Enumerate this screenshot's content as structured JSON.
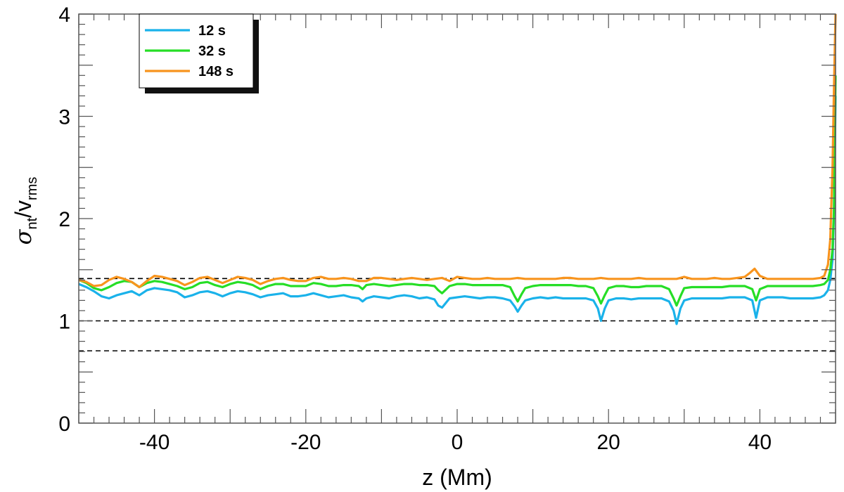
{
  "chart_data": {
    "type": "line",
    "title": "",
    "xlabel": "z (Mm)",
    "ylabel": {
      "symbol": "σ",
      "sub1": "nt",
      "slash": "/",
      "v": "v",
      "sub2": "rms"
    },
    "xlim": [
      -50,
      50
    ],
    "ylim": [
      0,
      4
    ],
    "x_ticks": [
      -40,
      -20,
      0,
      20,
      40
    ],
    "y_ticks": [
      0,
      1,
      2,
      3,
      4
    ],
    "x_minor_step": 2,
    "y_minor_step": 0.1,
    "grid": false,
    "legend_position": "top-left",
    "reference_lines": [
      1.414,
      1.0,
      0.707
    ],
    "series": [
      {
        "name": "12 s",
        "color": "#1ab2ea",
        "x": [
          -50,
          -49,
          -48,
          -47,
          -46,
          -45,
          -44,
          -43,
          -42,
          -41,
          -40,
          -39,
          -38,
          -37,
          -36,
          -35,
          -34,
          -33,
          -32,
          -31,
          -30,
          -29,
          -28,
          -27,
          -26,
          -25,
          -24,
          -23,
          -22,
          -21,
          -20,
          -19,
          -18,
          -17,
          -16,
          -15,
          -14,
          -13,
          -12.5,
          -12,
          -11,
          -10,
          -9,
          -8,
          -7,
          -6,
          -5,
          -4,
          -3,
          -2.5,
          -2,
          -1,
          0,
          1,
          2,
          3,
          4,
          5,
          6,
          7,
          7.6,
          8,
          8.5,
          9,
          10,
          11,
          12,
          13,
          14,
          15,
          16,
          17,
          18,
          18.6,
          19,
          19.5,
          20,
          21,
          22,
          23,
          24,
          25,
          26,
          27,
          28,
          28.6,
          29,
          29.5,
          30,
          31,
          32,
          33,
          34,
          35,
          36,
          37,
          38,
          39,
          39.5,
          40,
          41,
          42,
          43,
          44,
          45,
          46,
          47,
          48,
          48.5,
          49,
          49.3,
          49.6,
          49.8,
          50
        ],
        "y": [
          1.36,
          1.33,
          1.29,
          1.24,
          1.22,
          1.25,
          1.27,
          1.29,
          1.25,
          1.3,
          1.32,
          1.31,
          1.3,
          1.28,
          1.23,
          1.25,
          1.28,
          1.29,
          1.27,
          1.24,
          1.27,
          1.29,
          1.28,
          1.26,
          1.23,
          1.25,
          1.26,
          1.27,
          1.24,
          1.24,
          1.25,
          1.27,
          1.25,
          1.23,
          1.24,
          1.25,
          1.23,
          1.22,
          1.19,
          1.22,
          1.24,
          1.23,
          1.22,
          1.24,
          1.25,
          1.24,
          1.22,
          1.23,
          1.21,
          1.15,
          1.13,
          1.22,
          1.23,
          1.24,
          1.23,
          1.22,
          1.23,
          1.23,
          1.22,
          1.2,
          1.14,
          1.09,
          1.15,
          1.2,
          1.22,
          1.23,
          1.22,
          1.23,
          1.22,
          1.22,
          1.22,
          1.22,
          1.2,
          1.12,
          1.0,
          1.12,
          1.2,
          1.22,
          1.22,
          1.21,
          1.22,
          1.22,
          1.22,
          1.22,
          1.19,
          1.1,
          0.97,
          1.12,
          1.2,
          1.22,
          1.22,
          1.22,
          1.22,
          1.22,
          1.23,
          1.23,
          1.23,
          1.2,
          1.03,
          1.2,
          1.23,
          1.23,
          1.23,
          1.22,
          1.22,
          1.22,
          1.22,
          1.23,
          1.25,
          1.3,
          1.4,
          1.6,
          2.05,
          3.2
        ]
      },
      {
        "name": "32 s",
        "color": "#26de26",
        "x": [
          -50,
          -49,
          -48,
          -47,
          -46,
          -45,
          -44,
          -43,
          -42,
          -41,
          -40,
          -39,
          -38,
          -37,
          -36,
          -35,
          -34,
          -33,
          -32,
          -31,
          -30,
          -29,
          -28,
          -27,
          -26,
          -25,
          -24,
          -23,
          -22,
          -21,
          -20,
          -19,
          -18,
          -17,
          -16,
          -15,
          -14,
          -13,
          -12.5,
          -12,
          -11,
          -10,
          -9,
          -8,
          -7,
          -6,
          -5,
          -4,
          -3,
          -2.5,
          -2,
          -1,
          0,
          1,
          2,
          3,
          4,
          5,
          6,
          7,
          7.6,
          8,
          8.5,
          9,
          10,
          11,
          12,
          13,
          14,
          15,
          16,
          17,
          18,
          18.6,
          19,
          19.5,
          20,
          21,
          22,
          23,
          24,
          25,
          26,
          27,
          28,
          28.6,
          29,
          29.5,
          30,
          31,
          32,
          33,
          34,
          35,
          36,
          37,
          38,
          39,
          39.5,
          40,
          41,
          42,
          43,
          44,
          45,
          46,
          47,
          48,
          48.5,
          49,
          49.3,
          49.6,
          49.8,
          50
        ],
        "y": [
          1.4,
          1.37,
          1.32,
          1.3,
          1.33,
          1.37,
          1.39,
          1.38,
          1.33,
          1.37,
          1.39,
          1.38,
          1.36,
          1.34,
          1.31,
          1.33,
          1.37,
          1.38,
          1.35,
          1.33,
          1.36,
          1.38,
          1.37,
          1.35,
          1.31,
          1.34,
          1.36,
          1.36,
          1.34,
          1.34,
          1.34,
          1.37,
          1.36,
          1.34,
          1.34,
          1.35,
          1.35,
          1.34,
          1.31,
          1.35,
          1.36,
          1.35,
          1.34,
          1.35,
          1.36,
          1.36,
          1.35,
          1.35,
          1.34,
          1.3,
          1.27,
          1.34,
          1.36,
          1.36,
          1.35,
          1.35,
          1.35,
          1.35,
          1.35,
          1.33,
          1.24,
          1.19,
          1.26,
          1.32,
          1.34,
          1.35,
          1.35,
          1.35,
          1.35,
          1.35,
          1.34,
          1.34,
          1.32,
          1.24,
          1.17,
          1.25,
          1.32,
          1.34,
          1.34,
          1.33,
          1.33,
          1.34,
          1.34,
          1.34,
          1.31,
          1.22,
          1.15,
          1.24,
          1.32,
          1.33,
          1.33,
          1.33,
          1.33,
          1.33,
          1.34,
          1.34,
          1.34,
          1.31,
          1.2,
          1.31,
          1.34,
          1.34,
          1.34,
          1.34,
          1.34,
          1.34,
          1.34,
          1.35,
          1.36,
          1.4,
          1.5,
          1.7,
          2.1,
          3.4
        ]
      },
      {
        "name": "148 s",
        "color": "#f8941d",
        "x": [
          -50,
          -49,
          -48,
          -47,
          -46,
          -45,
          -44,
          -43,
          -42,
          -41,
          -40,
          -39,
          -38,
          -37,
          -36,
          -35,
          -34,
          -33,
          -32,
          -31,
          -30,
          -29,
          -28,
          -27,
          -26,
          -25,
          -24,
          -23,
          -22,
          -21,
          -20,
          -19,
          -18,
          -17,
          -16,
          -15,
          -14,
          -13,
          -12,
          -11,
          -10,
          -9,
          -8,
          -7,
          -6,
          -5,
          -4,
          -3,
          -2,
          -1,
          0,
          1,
          2,
          3,
          4,
          5,
          6,
          7,
          8,
          9,
          10,
          11,
          12,
          13,
          14,
          15,
          16,
          17,
          18,
          19,
          20,
          21,
          22,
          23,
          24,
          25,
          26,
          27,
          28,
          29,
          30,
          31,
          32,
          33,
          34,
          35,
          36,
          37,
          38,
          38.7,
          39.3,
          40,
          41,
          42,
          43,
          44,
          45,
          46,
          47,
          48,
          48.5,
          49,
          49.3,
          49.6,
          49.8,
          50
        ],
        "y": [
          1.4,
          1.38,
          1.34,
          1.35,
          1.4,
          1.43,
          1.41,
          1.38,
          1.33,
          1.39,
          1.44,
          1.43,
          1.41,
          1.39,
          1.35,
          1.38,
          1.42,
          1.43,
          1.4,
          1.37,
          1.4,
          1.43,
          1.42,
          1.4,
          1.36,
          1.39,
          1.41,
          1.42,
          1.4,
          1.39,
          1.39,
          1.42,
          1.43,
          1.41,
          1.41,
          1.42,
          1.41,
          1.39,
          1.39,
          1.42,
          1.42,
          1.41,
          1.4,
          1.41,
          1.42,
          1.41,
          1.4,
          1.41,
          1.42,
          1.39,
          1.43,
          1.42,
          1.41,
          1.41,
          1.42,
          1.41,
          1.41,
          1.41,
          1.42,
          1.41,
          1.41,
          1.41,
          1.41,
          1.41,
          1.42,
          1.42,
          1.41,
          1.41,
          1.41,
          1.42,
          1.41,
          1.41,
          1.41,
          1.41,
          1.42,
          1.41,
          1.41,
          1.41,
          1.41,
          1.41,
          1.43,
          1.41,
          1.41,
          1.41,
          1.42,
          1.41,
          1.41,
          1.42,
          1.43,
          1.47,
          1.51,
          1.44,
          1.41,
          1.41,
          1.41,
          1.41,
          1.41,
          1.41,
          1.41,
          1.42,
          1.44,
          1.55,
          1.8,
          2.5,
          3.3,
          4.0
        ]
      }
    ]
  }
}
